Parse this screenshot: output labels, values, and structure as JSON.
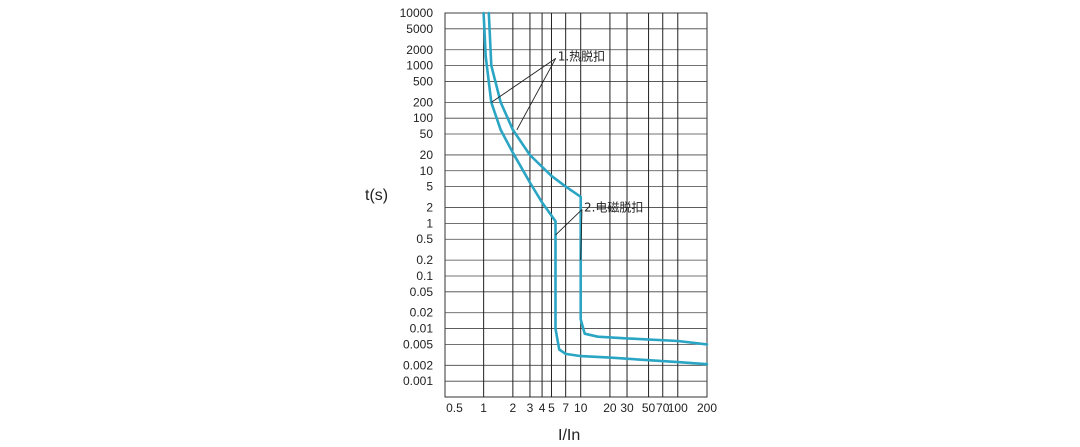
{
  "chart_data": {
    "type": "line",
    "title": "",
    "xlabel": "I/In",
    "ylabel": "t(s)",
    "x_scale": "log",
    "y_scale": "log",
    "xlim": [
      0.4,
      200
    ],
    "ylim": [
      0.0005,
      10000
    ],
    "grid": true,
    "x_ticks": [
      {
        "v": 0.5,
        "label": "0.5"
      },
      {
        "v": 1,
        "label": "1"
      },
      {
        "v": 2,
        "label": "2"
      },
      {
        "v": 3,
        "label": "3"
      },
      {
        "v": 4,
        "label": "4"
      },
      {
        "v": 5,
        "label": "5"
      },
      {
        "v": 7,
        "label": "7"
      },
      {
        "v": 10,
        "label": "10"
      },
      {
        "v": 20,
        "label": "20"
      },
      {
        "v": 30,
        "label": "30"
      },
      {
        "v": 50,
        "label": "50"
      },
      {
        "v": 70,
        "label": "70"
      },
      {
        "v": 100,
        "label": "100"
      },
      {
        "v": 200,
        "label": "200"
      }
    ],
    "x_grid": [
      1,
      2,
      3,
      4,
      5,
      7,
      10,
      20,
      30,
      50,
      70,
      100
    ],
    "y_ticks": [
      {
        "v": 10000,
        "label": "10000"
      },
      {
        "v": 5000,
        "label": "5000"
      },
      {
        "v": 2000,
        "label": "2000"
      },
      {
        "v": 1000,
        "label": "1000"
      },
      {
        "v": 500,
        "label": "500"
      },
      {
        "v": 200,
        "label": "200"
      },
      {
        "v": 100,
        "label": "100"
      },
      {
        "v": 50,
        "label": "50"
      },
      {
        "v": 20,
        "label": "20"
      },
      {
        "v": 10,
        "label": "10"
      },
      {
        "v": 5,
        "label": "5"
      },
      {
        "v": 2,
        "label": "2"
      },
      {
        "v": 1,
        "label": "1"
      },
      {
        "v": 0.5,
        "label": "0.5"
      },
      {
        "v": 0.2,
        "label": "0.2"
      },
      {
        "v": 0.1,
        "label": "0.1"
      },
      {
        "v": 0.05,
        "label": "0.05"
      },
      {
        "v": 0.02,
        "label": "0.02"
      },
      {
        "v": 0.01,
        "label": "0.01"
      },
      {
        "v": 0.005,
        "label": "0.005"
      },
      {
        "v": 0.002,
        "label": "0.002"
      },
      {
        "v": 0.001,
        "label": "0.001"
      }
    ],
    "series": [
      {
        "values": [
          [
            1.0,
            10000
          ],
          [
            1.05,
            1500
          ],
          [
            1.2,
            200
          ],
          [
            1.5,
            60
          ],
          [
            2,
            22
          ],
          [
            3,
            6
          ],
          [
            4,
            2.5
          ],
          [
            5.5,
            1.1
          ],
          [
            5.5,
            0.01
          ],
          [
            6,
            0.004
          ],
          [
            7,
            0.0033
          ],
          [
            10,
            0.003
          ],
          [
            20,
            0.0028
          ],
          [
            50,
            0.0025
          ],
          [
            100,
            0.0023
          ],
          [
            200,
            0.0021
          ]
        ]
      },
      {
        "values": [
          [
            1.13,
            10000
          ],
          [
            1.2,
            1000
          ],
          [
            1.5,
            200
          ],
          [
            2,
            60
          ],
          [
            3,
            20
          ],
          [
            5,
            8
          ],
          [
            7,
            5
          ],
          [
            10,
            3.2
          ],
          [
            10,
            0.015
          ],
          [
            11,
            0.008
          ],
          [
            15,
            0.007
          ],
          [
            30,
            0.0065
          ],
          [
            100,
            0.0058
          ],
          [
            200,
            0.005
          ]
        ]
      }
    ],
    "line_color": "#2ba5c4",
    "annotations": [
      {
        "text": "1.热脱扣",
        "x": 5.8,
        "y": 1500,
        "pointers": [
          [
            1.2,
            200
          ],
          [
            2.2,
            60
          ]
        ]
      },
      {
        "text": "2.电磁脱扣",
        "x": 10.8,
        "y": 2,
        "pointers": [
          [
            5.5,
            0.6
          ],
          [
            10,
            0.2
          ]
        ]
      }
    ]
  }
}
